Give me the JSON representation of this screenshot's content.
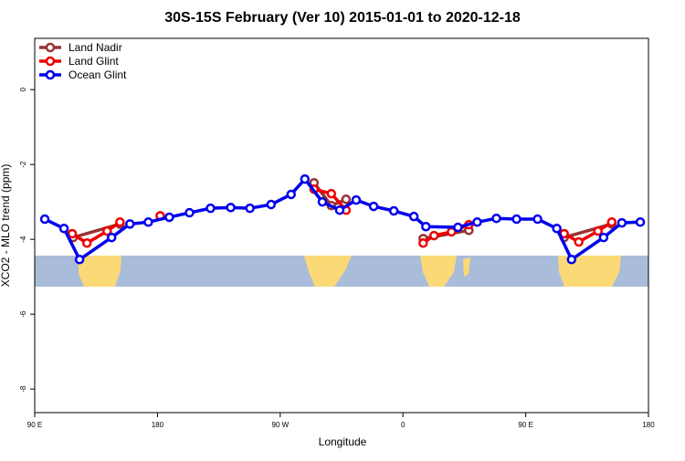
{
  "chart_data": {
    "type": "line",
    "title": "30S-15S February (Ver 10)   2015-01-01 to 2020-12-18",
    "x_label": "Longitude",
    "y_label": "XCO2 - MLO trend (ppm)",
    "xlim": [
      90,
      540
    ],
    "ylim": [
      -8.63,
      1.37
    ],
    "xticks": [
      {
        "value": 90,
        "label": "90 E"
      },
      180,
      {
        "value": 270,
        "label": "90 W"
      },
      {
        "value": 360,
        "label": "0"
      },
      {
        "value": 450,
        "label": "90 E"
      },
      {
        "value": 540,
        "label": "180"
      }
    ],
    "yticks": [
      0,
      -2,
      -4,
      -6,
      -8
    ],
    "legend": "top-left",
    "series": [
      {
        "name": "Land Nadir",
        "color": "#993333",
        "x": [
          118.2,
          152.5,
          null,
          294.8,
          307.5,
          318.3,
          null,
          374.8,
          408.3,
          null,
          478.2,
          513.1
        ],
        "values": [
          -3.95,
          -3.59,
          null,
          -2.49,
          -3.1,
          -2.93,
          null,
          -3.98,
          -3.76,
          null,
          -3.95,
          -3.59
        ]
      },
      {
        "name": "Land Glint",
        "color": "#ee0000",
        "x": [
          117.5,
          128.3,
          143.1,
          152.5,
          null,
          182.0,
          null,
          294.8,
          307.5,
          318.3,
          null,
          374.8,
          382.8,
          395.6,
          408.3,
          null,
          478.2,
          488.9,
          503.0,
          513.1
        ],
        "values": [
          -3.85,
          -4.1,
          -3.78,
          -3.54,
          null,
          -3.37,
          null,
          -2.66,
          -2.78,
          -3.22,
          null,
          -4.1,
          -3.9,
          -3.8,
          -3.61,
          null,
          -3.85,
          -4.07,
          -3.78,
          -3.54
        ]
      },
      {
        "name": "Ocean Glint",
        "color": "#0000ee",
        "x": [
          97.4,
          111.5,
          122.9,
          146.4,
          159.8,
          173.3,
          188.7,
          203.5,
          218.9,
          233.7,
          247.8,
          263.3,
          278.0,
          288.1,
          300.9,
          313.6,
          325.7,
          338.5,
          353.3,
          368.0,
          376.8,
          400.3,
          414.4,
          428.5,
          443.3,
          458.7,
          472.8,
          483.6,
          507.1,
          520.5,
          534.0
        ],
        "values": [
          -3.46,
          -3.71,
          -4.54,
          -3.95,
          -3.59,
          -3.54,
          -3.41,
          -3.29,
          -3.17,
          -3.15,
          -3.17,
          -3.07,
          -2.8,
          -2.39,
          -3.0,
          -3.22,
          -2.95,
          -3.12,
          -3.24,
          -3.39,
          -3.66,
          -3.68,
          -3.54,
          -3.44,
          -3.46,
          -3.46,
          -3.71,
          -4.54,
          -3.95,
          -3.56,
          -3.54
        ]
      }
    ]
  }
}
